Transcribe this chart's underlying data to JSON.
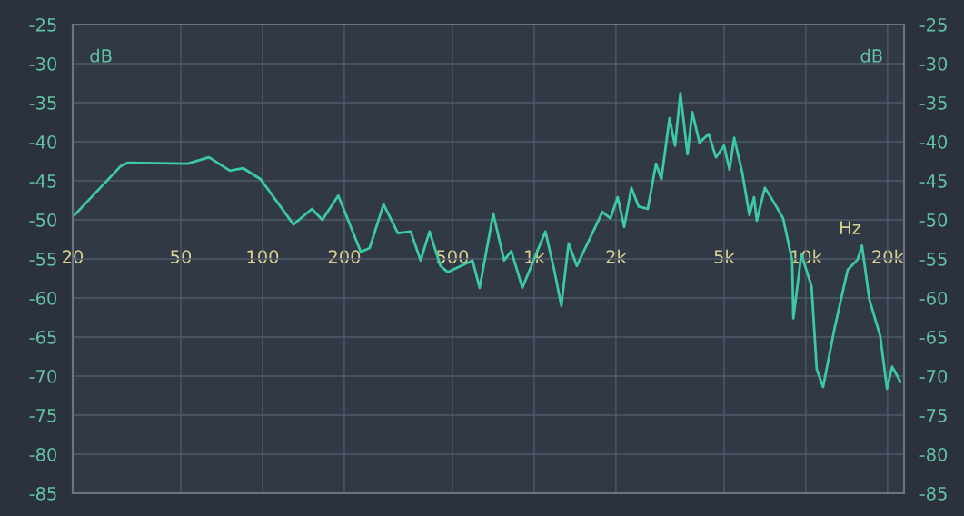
{
  "chart_data": {
    "type": "line",
    "log": "x",
    "xlim": [
      20,
      23000
    ],
    "xticks": [
      {
        "value": 20,
        "label": "20"
      },
      {
        "value": 50,
        "label": "50"
      },
      {
        "value": 100,
        "label": "100"
      },
      {
        "value": 200,
        "label": "200"
      },
      {
        "value": 500,
        "label": "500"
      },
      {
        "value": 1000,
        "label": "1k"
      },
      {
        "value": 2000,
        "label": "2k"
      },
      {
        "value": 5000,
        "label": "5k"
      },
      {
        "value": 10000,
        "label": "10k"
      },
      {
        "value": 20000,
        "label": "20k"
      }
    ],
    "ylim": [
      -85,
      -25
    ],
    "yticks": [
      -85,
      -80,
      -75,
      -70,
      -65,
      -60,
      -55,
      -50,
      -45,
      -40,
      -35,
      -30,
      -25
    ],
    "y2lim": [
      -85,
      -25
    ],
    "y2ticks": [
      -85,
      -80,
      -75,
      -70,
      -65,
      -60,
      -55,
      -50,
      -45,
      -40,
      -35,
      -30,
      -25
    ],
    "grid": true,
    "marker": "none",
    "line_style": "solid",
    "ylabel": "dB",
    "y2label": "dB",
    "xlabel": "Hz",
    "series": [
      {
        "color": "#3ccaa2",
        "x": [
          20.3,
          30.1,
          31.8,
          53,
          63.5,
          75.8,
          85,
          98.4,
          130,
          152,
          166,
          190,
          230,
          248,
          279,
          315,
          351,
          382,
          412,
          452,
          481,
          593,
          630,
          707,
          775,
          824,
          905,
          1100,
          1185,
          1259,
          1339,
          1436,
          1783,
          1910,
          2030,
          2145,
          2280,
          2425,
          2620,
          2810,
          2940,
          3150,
          3300,
          3455,
          3670,
          3820,
          4060,
          4390,
          4670,
          5000,
          5240,
          5450,
          5840,
          6200,
          6450,
          6600,
          7070,
          7520,
          8250,
          8910,
          9000,
          9630,
          10500,
          10970,
          11580,
          12740,
          14260,
          15500,
          16100,
          17140,
          18800,
          19900,
          20800,
          22280
        ],
        "values": [
          -49.4,
          -43.1,
          -42.7,
          -42.8,
          -42,
          -43.7,
          -43.4,
          -44.8,
          -50.6,
          -48.6,
          -50,
          -46.9,
          -54.1,
          -53.6,
          -48,
          -51.7,
          -51.5,
          -55.2,
          -51.5,
          -55.9,
          -56.7,
          -55.2,
          -58.7,
          -49.2,
          -55.2,
          -54,
          -58.7,
          -51.5,
          -56.4,
          -61,
          -53,
          -55.9,
          -49,
          -49.8,
          -47.1,
          -50.9,
          -45.9,
          -48.3,
          -48.6,
          -42.8,
          -44.8,
          -37,
          -40.5,
          -33.8,
          -41.6,
          -36.2,
          -40.1,
          -39,
          -42,
          -40.5,
          -43.6,
          -39.5,
          -44,
          -49.4,
          -47.1,
          -50.1,
          -45.9,
          -47.4,
          -49.8,
          -55.2,
          -62.6,
          -54.4,
          -58.5,
          -69.1,
          -71.4,
          -64,
          -56.4,
          -55.1,
          -53.3,
          -60.2,
          -64.9,
          -71.6,
          -68.8,
          -70.7
        ]
      }
    ]
  }
}
